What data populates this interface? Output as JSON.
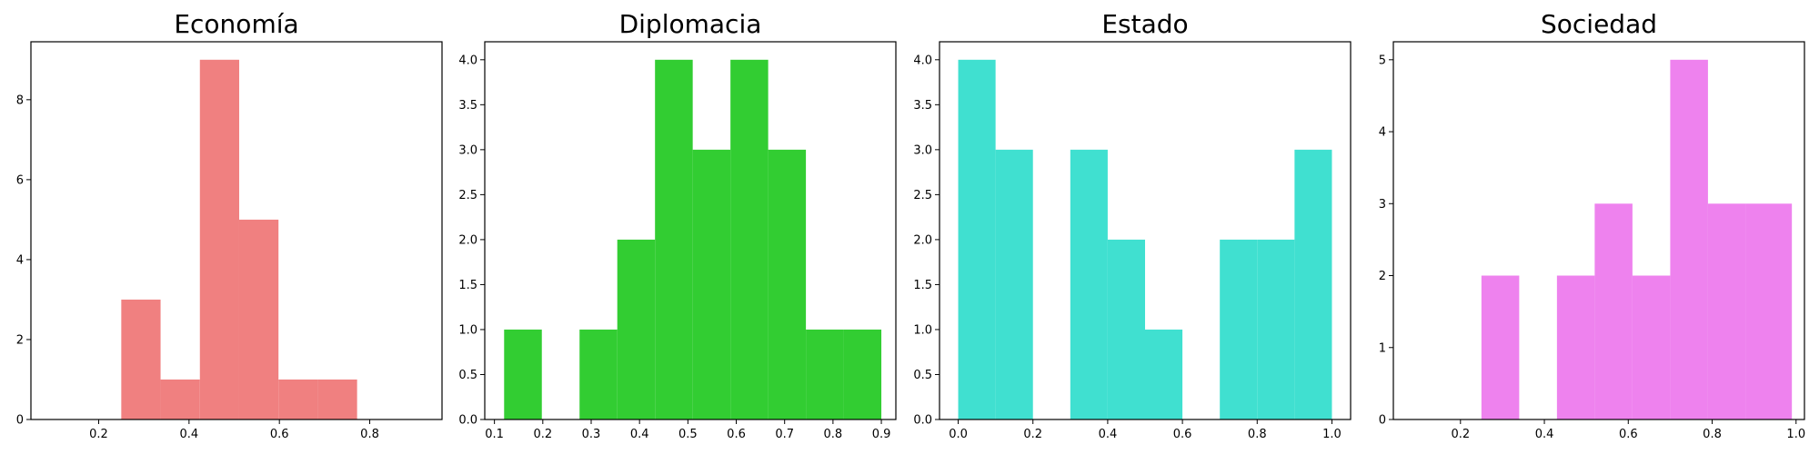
{
  "chart_data": [
    {
      "type": "histogram",
      "title": "Economía",
      "color": "#f08080",
      "xlim": [
        0.05,
        0.96
      ],
      "ylim": [
        0,
        9.45
      ],
      "xticks": [
        0.2,
        0.4,
        0.6,
        0.8
      ],
      "xtick_labels": [
        "0.2",
        "0.4",
        "0.6",
        "0.8"
      ],
      "yticks": [
        0,
        2,
        4,
        6,
        8
      ],
      "ytick_labels": [
        "0",
        "2",
        "4",
        "6",
        "8"
      ],
      "bins": [
        {
          "x0": 0.25,
          "x1": 0.337,
          "count": 3
        },
        {
          "x0": 0.337,
          "x1": 0.424,
          "count": 1
        },
        {
          "x0": 0.424,
          "x1": 0.511,
          "count": 9
        },
        {
          "x0": 0.511,
          "x1": 0.598,
          "count": 5
        },
        {
          "x0": 0.598,
          "x1": 0.685,
          "count": 1
        },
        {
          "x0": 0.685,
          "x1": 0.772,
          "count": 1
        }
      ]
    },
    {
      "type": "histogram",
      "title": "Diplomacia",
      "color": "#32cd32",
      "xlim": [
        0.08,
        0.93
      ],
      "ylim": [
        0,
        4.2
      ],
      "xticks": [
        0.1,
        0.2,
        0.3,
        0.4,
        0.5,
        0.6,
        0.7,
        0.8,
        0.9
      ],
      "xtick_labels": [
        "0.1",
        "0.2",
        "0.3",
        "0.4",
        "0.5",
        "0.6",
        "0.7",
        "0.8",
        "0.9"
      ],
      "yticks": [
        0,
        0.5,
        1.0,
        1.5,
        2.0,
        2.5,
        3.0,
        3.5,
        4.0
      ],
      "ytick_labels": [
        "0.0",
        "0.5",
        "1.0",
        "1.5",
        "2.0",
        "2.5",
        "3.0",
        "3.5",
        "4.0"
      ],
      "bins": [
        {
          "x0": 0.12,
          "x1": 0.198,
          "count": 1
        },
        {
          "x0": 0.198,
          "x1": 0.276,
          "count": 0
        },
        {
          "x0": 0.276,
          "x1": 0.354,
          "count": 1
        },
        {
          "x0": 0.354,
          "x1": 0.432,
          "count": 2
        },
        {
          "x0": 0.432,
          "x1": 0.51,
          "count": 4
        },
        {
          "x0": 0.51,
          "x1": 0.588,
          "count": 3
        },
        {
          "x0": 0.588,
          "x1": 0.666,
          "count": 4
        },
        {
          "x0": 0.666,
          "x1": 0.744,
          "count": 3
        },
        {
          "x0": 0.744,
          "x1": 0.822,
          "count": 1
        },
        {
          "x0": 0.822,
          "x1": 0.9,
          "count": 1
        }
      ]
    },
    {
      "type": "histogram",
      "title": "Estado",
      "color": "#40e0d0",
      "xlim": [
        -0.05,
        1.05
      ],
      "ylim": [
        0,
        4.2
      ],
      "xticks": [
        0.0,
        0.2,
        0.4,
        0.6,
        0.8,
        1.0
      ],
      "xtick_labels": [
        "0.0",
        "0.2",
        "0.4",
        "0.6",
        "0.8",
        "1.0"
      ],
      "yticks": [
        0,
        0.5,
        1.0,
        1.5,
        2.0,
        2.5,
        3.0,
        3.5,
        4.0
      ],
      "ytick_labels": [
        "0.0",
        "0.5",
        "1.0",
        "1.5",
        "2.0",
        "2.5",
        "3.0",
        "3.5",
        "4.0"
      ],
      "bins": [
        {
          "x0": 0.0,
          "x1": 0.1,
          "count": 4
        },
        {
          "x0": 0.1,
          "x1": 0.2,
          "count": 3
        },
        {
          "x0": 0.2,
          "x1": 0.3,
          "count": 0
        },
        {
          "x0": 0.3,
          "x1": 0.4,
          "count": 3
        },
        {
          "x0": 0.4,
          "x1": 0.5,
          "count": 2
        },
        {
          "x0": 0.5,
          "x1": 0.6,
          "count": 1
        },
        {
          "x0": 0.6,
          "x1": 0.7,
          "count": 0
        },
        {
          "x0": 0.7,
          "x1": 0.8,
          "count": 2
        },
        {
          "x0": 0.8,
          "x1": 0.9,
          "count": 2
        },
        {
          "x0": 0.9,
          "x1": 1.0,
          "count": 3
        }
      ]
    },
    {
      "type": "histogram",
      "title": "Sociedad",
      "color": "#ee82ee",
      "xlim": [
        0.04,
        1.02
      ],
      "ylim": [
        0,
        5.25
      ],
      "xticks": [
        0.2,
        0.4,
        0.6,
        0.8,
        1.0
      ],
      "xtick_labels": [
        "0.2",
        "0.4",
        "0.6",
        "0.8",
        "1.0"
      ],
      "yticks": [
        0,
        1,
        2,
        3,
        4,
        5
      ],
      "ytick_labels": [
        "0",
        "1",
        "2",
        "3",
        "4",
        "5"
      ],
      "bins": [
        {
          "x0": 0.25,
          "x1": 0.34,
          "count": 2
        },
        {
          "x0": 0.34,
          "x1": 0.43,
          "count": 0
        },
        {
          "x0": 0.43,
          "x1": 0.52,
          "count": 2
        },
        {
          "x0": 0.52,
          "x1": 0.61,
          "count": 3
        },
        {
          "x0": 0.61,
          "x1": 0.7,
          "count": 2
        },
        {
          "x0": 0.7,
          "x1": 0.79,
          "count": 5
        },
        {
          "x0": 0.79,
          "x1": 0.88,
          "count": 3
        },
        {
          "x0": 0.88,
          "x1": 0.99,
          "count": 3
        }
      ]
    }
  ]
}
